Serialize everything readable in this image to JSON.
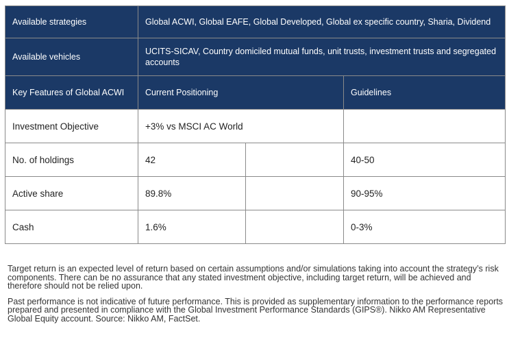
{
  "table": {
    "available_strategies": {
      "label": "Available strategies",
      "value": "Global ACWI, Global EAFE, Global Developed, Global ex specific country, Sharia, Dividend"
    },
    "available_vehicles": {
      "label": "Available vehicles",
      "value": "UCITS-SICAV, Country domiciled mutual funds, unit trusts, investment trusts and segregated accounts"
    },
    "headers": {
      "features": "Key Features of Global ACWI",
      "positioning": "Current Positioning",
      "guidelines": "Guidelines"
    },
    "rows": [
      {
        "feature": "Investment Objective",
        "positioning": "+3% vs MSCI AC World",
        "guidelines": ""
      },
      {
        "feature": "No. of holdings",
        "positioning": "42",
        "guidelines": "40-50"
      },
      {
        "feature": "Active share",
        "positioning": "89.8%",
        "guidelines": "90-95%"
      },
      {
        "feature": "Cash",
        "positioning": "1.6%",
        "guidelines": "0-3%"
      }
    ]
  },
  "footnotes": [
    "Target return is an expected level of return based on certain assumptions and/or simulations taking into account the strategy’s risk components. There can be no assurance that any stated investment objective, including target return, will be achieved and therefore should not be relied upon.",
    "Past performance is not indicative of future performance. This is provided as supplementary information to the performance reports prepared and presented in compliance with the Global Investment Performance Standards (GIPS®).  Nikko AM Representative Global Equity account. Source: Nikko AM, FactSet."
  ]
}
